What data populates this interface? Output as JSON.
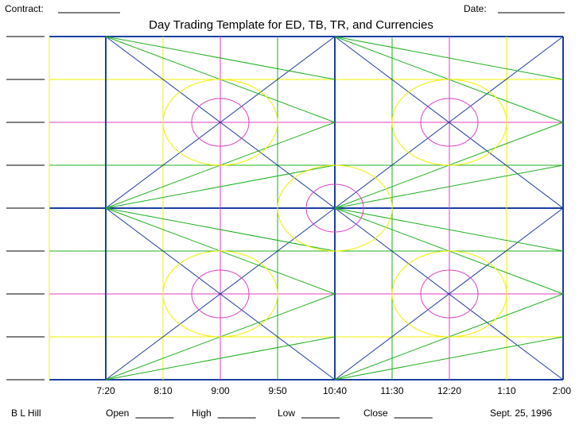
{
  "header": {
    "contract_label": "Contract:",
    "date_label": "Date:"
  },
  "title": "Day Trading Template for ED, TB, TR, and Currencies",
  "axis": {
    "times": [
      "7:20",
      "8:10",
      "9:00",
      "9:50",
      "10:40",
      "11:30",
      "12:20",
      "1:10",
      "2:00"
    ]
  },
  "footer": {
    "author": "B L Hill",
    "fields": [
      "Open",
      "High",
      "Low",
      "Close"
    ],
    "date": "Sept. 25, 1996"
  }
}
